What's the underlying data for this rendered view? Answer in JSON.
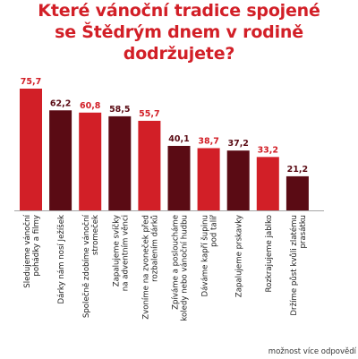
{
  "chart_data": {
    "type": "bar",
    "title_lines": [
      "Které vánoční tradice spojené",
      "se Štědrým dnem v rodině",
      "dodržujete?"
    ],
    "categories": [
      [
        "Sledujeme vánoční",
        "pohádky a filmy"
      ],
      [
        "Dárky nám nosí Ježíšek"
      ],
      [
        "Společně zdobíme vánoční",
        "stromeček"
      ],
      [
        "Zapalujeme svíčky",
        "na adventním věnci"
      ],
      [
        "Zvoníme na zvoneček před",
        "rozbalením dárků"
      ],
      [
        "Zpíváme a posloucháme",
        "koledy nebo vánoční hudbu"
      ],
      [
        "Dáváme kapří šupinu",
        "pod talíř"
      ],
      [
        "Zapalujeme prskavky"
      ],
      [
        "Rozkrajujeme jablko"
      ],
      [
        "Držíme půst kvůli zlatému",
        "prasátku"
      ]
    ],
    "values": [
      75.7,
      62.2,
      60.8,
      58.5,
      55.7,
      40.1,
      38.7,
      37.2,
      33.2,
      21.2
    ],
    "value_labels": [
      "75,7",
      "62,2",
      "60,8",
      "58,5",
      "55,7",
      "40,1",
      "38,7",
      "37,2",
      "33,2",
      "21,2"
    ],
    "bar_colors": [
      "#d21f27",
      "#5a0b14",
      "#d21f27",
      "#5a0b14",
      "#d21f27",
      "#5a0b14",
      "#d21f27",
      "#5a0b14",
      "#d21f27",
      "#5a0b14"
    ],
    "label_colors": [
      "#d21f27",
      "#5a0b14",
      "#d21f27",
      "#5a0b14",
      "#d21f27",
      "#5a0b14",
      "#d21f27",
      "#5a0b14",
      "#d21f27",
      "#5a0b14"
    ],
    "ylim": [
      0,
      80
    ],
    "grid": false,
    "note": "možnost více odpovědí"
  }
}
